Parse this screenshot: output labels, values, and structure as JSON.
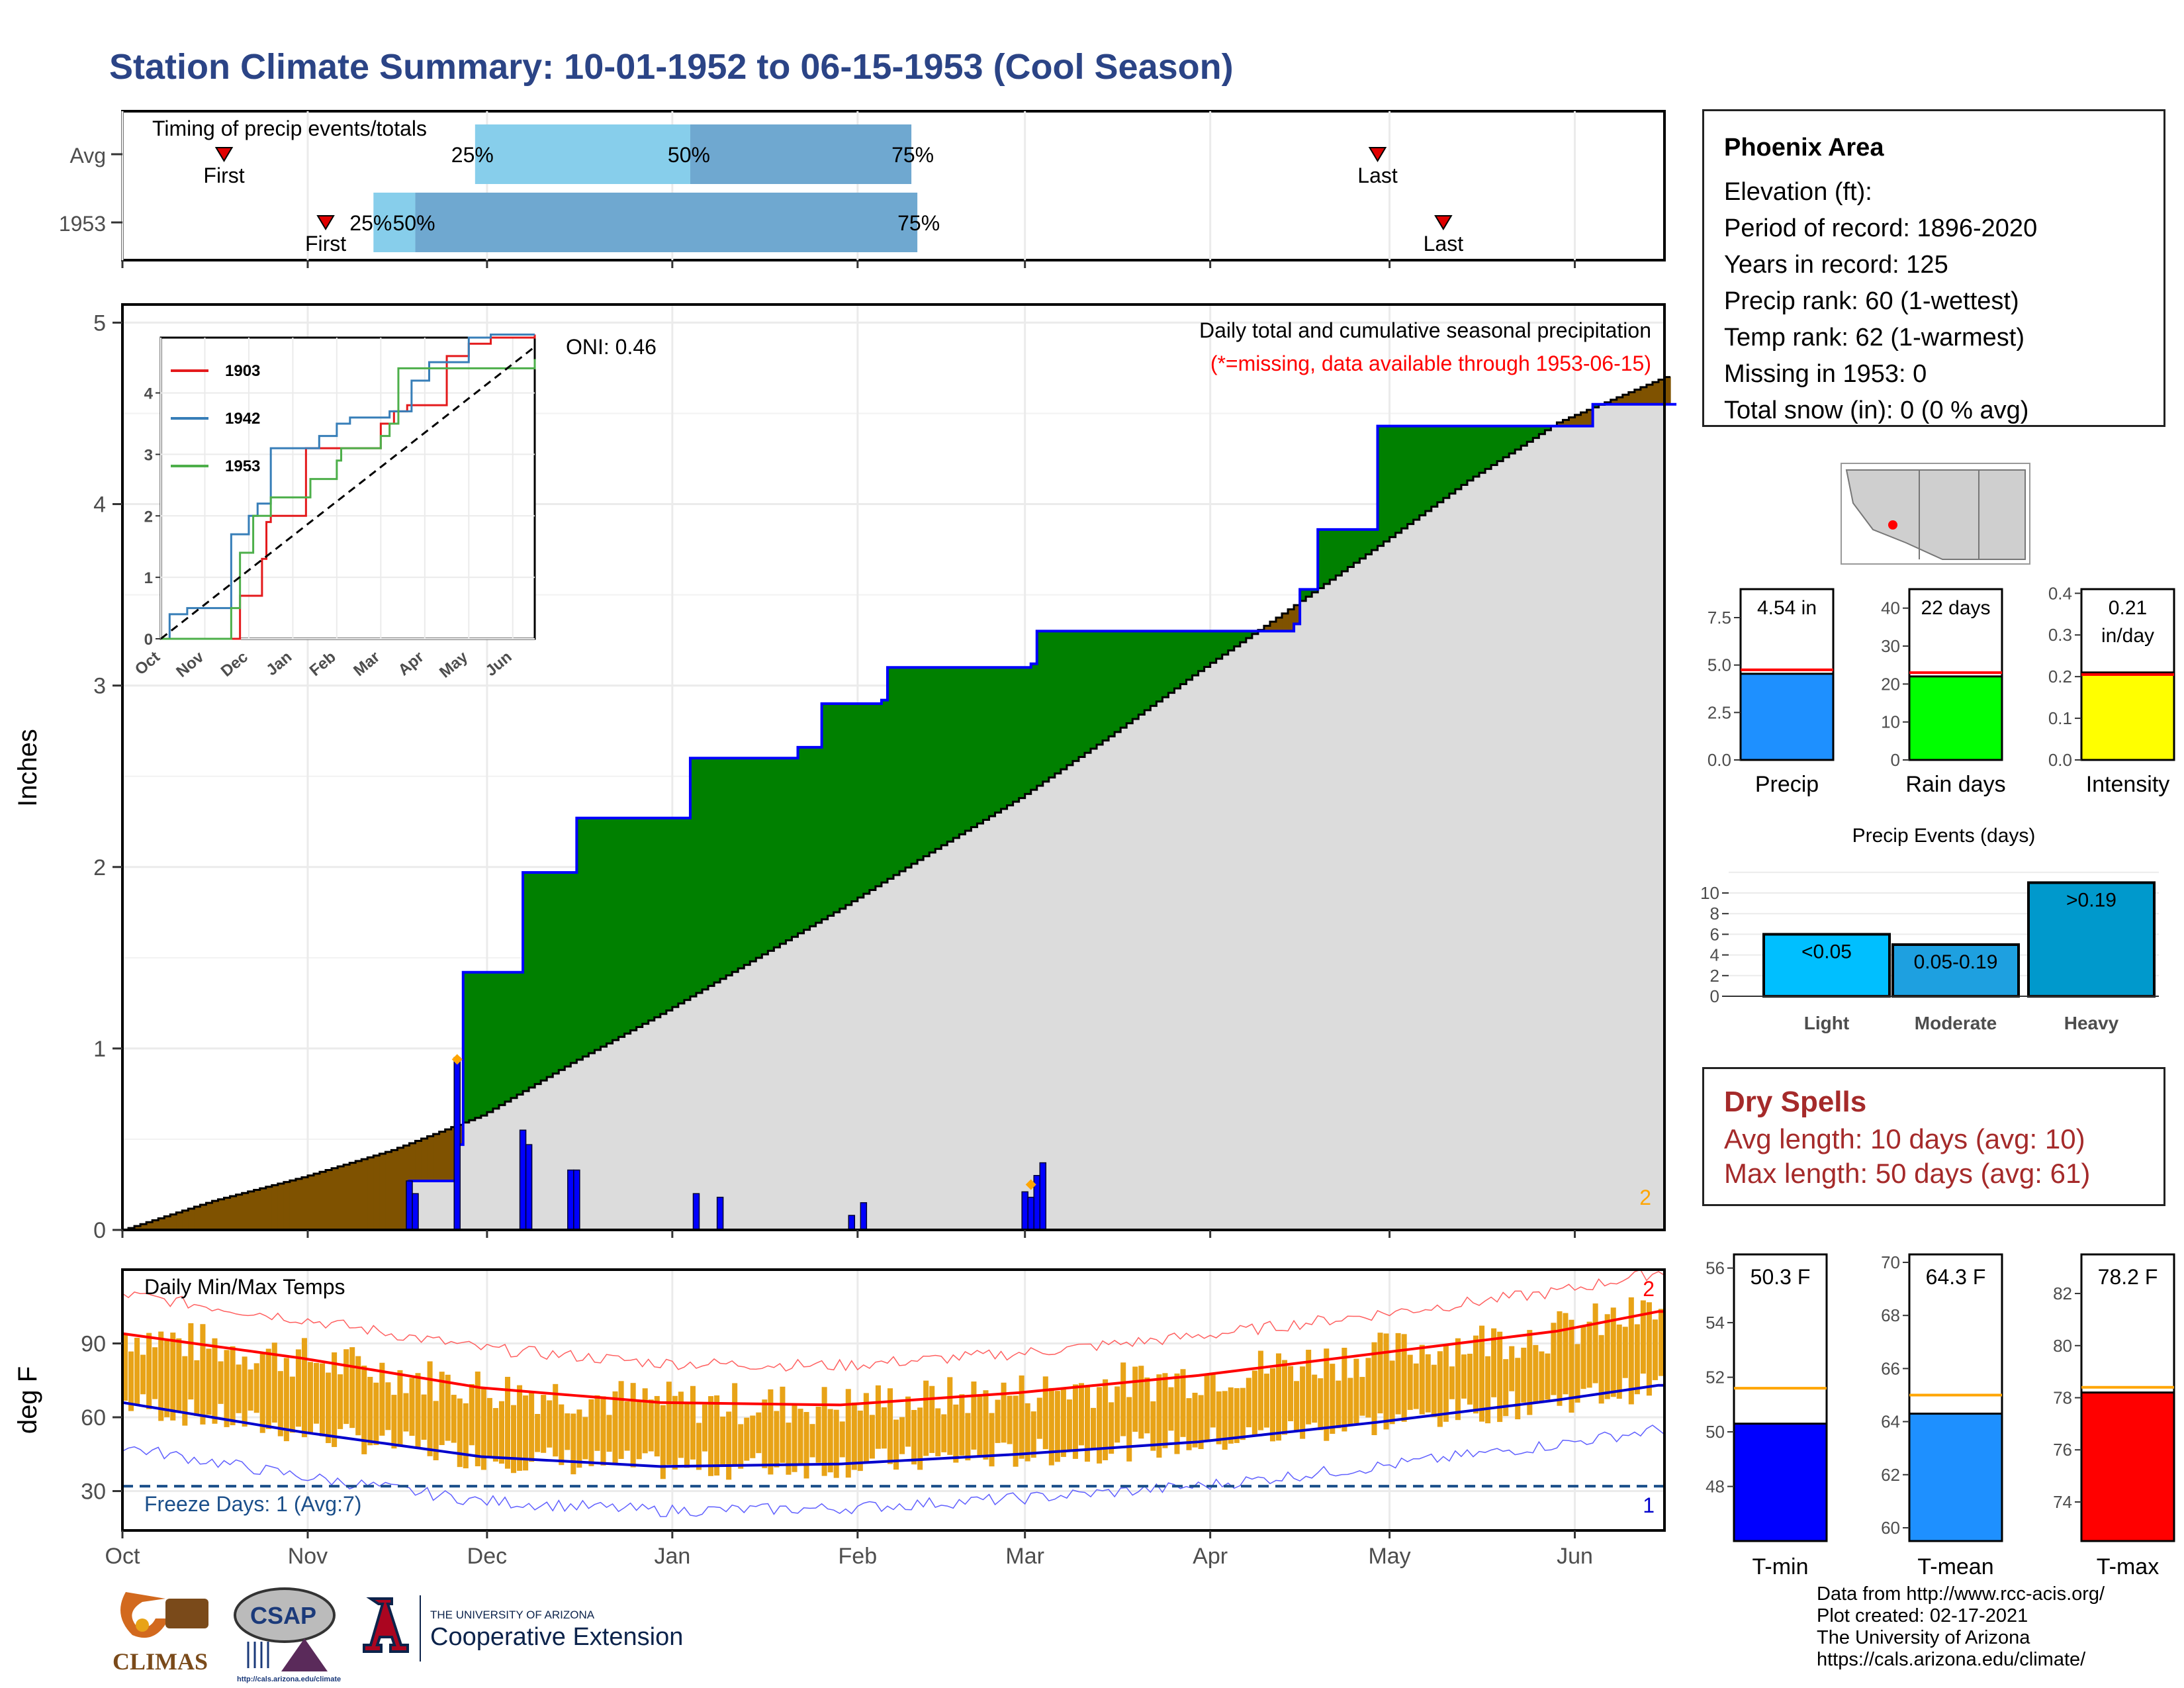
{
  "title": "Station Climate Summary: 10-01-1952 to 06-15-1953 (Cool Season)",
  "colors": {
    "title": "#2b4486",
    "wet": "#008000",
    "dry": "#7f5200",
    "normal_fill": "#dcdcdc",
    "daily_bar": "#0000ff",
    "temp_bar": "#e8a317",
    "tmax_line": "#ff0000",
    "tmin_line": "#0000cc",
    "dry_spell": "#a52a2a"
  },
  "timing_panel": {
    "label": "Timing of precip events/totals",
    "rows": [
      {
        "name": "Avg",
        "first_label": "First",
        "last_label": "Last",
        "q25": "25%",
        "q50": "50%",
        "q75": "75%"
      },
      {
        "name": "1953",
        "first_label": "First",
        "last_label": "Last",
        "q25": "25%",
        "q50": "50%",
        "q75": "75%"
      }
    ]
  },
  "precip_panel": {
    "ylabel": "Inches",
    "label": "Daily total and cumulative seasonal precipitation",
    "missing_note": "(*=missing, data available through 1953-06-15)",
    "oni": "ONI: 0.46",
    "missing_count": "2",
    "y_ticks": [
      "0",
      "1",
      "2",
      "3",
      "4",
      "5"
    ]
  },
  "inset": {
    "y_ticks": [
      "0",
      "1",
      "2",
      "3",
      "4"
    ],
    "x_ticks": [
      "Oct",
      "Nov",
      "Dec",
      "Jan",
      "Feb",
      "Mar",
      "Apr",
      "May",
      "Jun"
    ],
    "legend": [
      "1903",
      "1942",
      "1953"
    ]
  },
  "temp_panel": {
    "ylabel": "deg F",
    "label": "Daily Min/Max Temps",
    "freeze": "Freeze Days: 1 (Avg:7)",
    "max_missing": "2",
    "min_missing": "1",
    "y_ticks": [
      "30",
      "60",
      "90"
    ],
    "x_ticks": [
      "Oct",
      "Nov",
      "Dec",
      "Jan",
      "Feb",
      "Mar",
      "Apr",
      "May",
      "Jun"
    ]
  },
  "station": {
    "area": "Phoenix Area",
    "elevation": "Elevation (ft):",
    "period": "Period of record: 1896-2020",
    "years": "Years in record: 125",
    "precip_rank": "Precip rank: 60 (1-wettest)",
    "temp_rank": "Temp rank: 62 (1-warmest)",
    "missing": "Missing in 1953: 0",
    "snow": "Total snow (in): 0 (0 % avg)"
  },
  "summary_bars": [
    {
      "label": "Precip",
      "value_text": "4.54 in",
      "value_line2": "",
      "value": 4.54,
      "avg": 4.75,
      "ymax": 9.0,
      "ticks": [
        "0.0",
        "2.5",
        "5.0",
        "7.5"
      ],
      "tick_vals": [
        0,
        2.5,
        5.0,
        7.5
      ],
      "color": "#1e90ff"
    },
    {
      "label": "Rain days",
      "value_text": "22 days",
      "value_line2": "",
      "value": 22,
      "avg": 23,
      "ymax": 45,
      "ticks": [
        "0",
        "10",
        "20",
        "30",
        "40"
      ],
      "tick_vals": [
        0,
        10,
        20,
        30,
        40
      ],
      "color": "#00ff00"
    },
    {
      "label": "Intensity",
      "value_text": "0.21",
      "value_line2": "in/day",
      "value": 0.21,
      "avg": 0.205,
      "ymax": 0.41,
      "ticks": [
        "0.0",
        "0.1",
        "0.2",
        "0.3",
        "0.4"
      ],
      "tick_vals": [
        0,
        0.1,
        0.2,
        0.3,
        0.4
      ],
      "color": "#ffff00"
    }
  ],
  "events": {
    "title": "Precip Events (days)",
    "ticks": [
      "0",
      "2",
      "4",
      "6",
      "8",
      "10"
    ],
    "bars": [
      {
        "label": "Light",
        "value_text": "<0.05",
        "value": 6,
        "color": "#00bfff"
      },
      {
        "label": "Moderate",
        "value_text": "0.05-0.19",
        "value": 5,
        "color": "#1ea0e0"
      },
      {
        "label": "Heavy",
        "value_text": ">0.19",
        "value": 11,
        "color": "#0099cc"
      }
    ]
  },
  "dry_spells": {
    "title": "Dry Spells",
    "avg": "Avg length: 10 days (avg: 10)",
    "max": "Max length: 50 days (avg: 61)"
  },
  "temp_bars": [
    {
      "label": "T-min",
      "value_text": "50.3 F",
      "value": 50.3,
      "avg": 51.6,
      "ymin": 46,
      "ymax": 56.5,
      "ticks": [
        "48",
        "50",
        "52",
        "54",
        "56"
      ],
      "tick_vals": [
        48,
        50,
        52,
        54,
        56
      ],
      "color": "#0000ff"
    },
    {
      "label": "T-mean",
      "value_text": "64.3 F",
      "value": 64.3,
      "avg": 65.0,
      "ymin": 59.5,
      "ymax": 70.3,
      "ticks": [
        "60",
        "62",
        "64",
        "66",
        "68",
        "70"
      ],
      "tick_vals": [
        60,
        62,
        64,
        66,
        68,
        70
      ],
      "color": "#1e90ff"
    },
    {
      "label": "T-max",
      "value_text": "78.2 F",
      "value": 78.2,
      "avg": 78.4,
      "ymin": 72.5,
      "ymax": 83.5,
      "ticks": [
        "74",
        "76",
        "78",
        "80",
        "82"
      ],
      "tick_vals": [
        74,
        76,
        78,
        80,
        82
      ],
      "color": "#ff0000"
    }
  ],
  "credits": {
    "line1": "Data from http://www.rcc-acis.org/",
    "line2": "Plot created: 02-17-2021",
    "line3": "The University of Arizona",
    "line4": "https://cals.arizona.edu/climate/"
  },
  "logos": {
    "climas": "CLIMAS",
    "csap": "CSAP",
    "csap_url": "http://cals.arizona.edu/climate",
    "ua_title": "THE UNIVERSITY OF ARIZONA",
    "ua_name": "Cooperative Extension"
  },
  "chart_data": [
    {
      "type": "area",
      "name": "cumulative precipitation",
      "x_unit": "day of season (0 = Oct 1)",
      "x_ticks": [
        "Oct",
        "Nov",
        "Dec",
        "Jan",
        "Feb",
        "Mar",
        "Apr",
        "May",
        "Jun"
      ],
      "ylim": [
        0,
        5.1
      ],
      "observed_1953": {
        "x": [
          0,
          74,
          88,
          88,
          104,
          104,
          112,
          112,
          130,
          130,
          149,
          149,
          152,
          152,
          158,
          158,
          189,
          189,
          192,
          192,
          265,
          265,
          267,
          267,
          272,
          272,
          275,
          275,
          350,
          350,
          372,
          372,
          396,
          396,
          430,
          430,
          470,
          470,
          500,
          520,
          540,
          560,
          580,
          600,
          620,
          640,
          660,
          680,
          700,
          720,
          730,
          760,
          780,
          810,
          840,
          873,
          873,
          980,
          1000,
          1020,
          1040,
          1060,
          1080,
          1100
        ],
        "y": [
          0,
          0,
          0,
          0,
          0,
          0,
          0,
          0,
          0,
          0,
          0,
          0,
          0,
          0,
          0,
          0,
          0,
          0,
          0,
          0,
          0,
          0,
          0,
          0,
          0,
          0,
          0,
          0,
          0,
          0,
          0,
          0,
          0,
          0,
          0,
          0,
          0,
          0,
          0,
          0,
          0,
          0,
          0,
          0,
          0,
          0,
          0,
          0,
          0,
          0,
          0,
          0,
          0,
          0,
          0,
          0,
          0,
          0,
          0,
          0,
          0,
          0,
          0,
          0
        ]
      },
      "observed_steps": {
        "day": [
          0,
          46,
          48,
          56,
          56,
          66,
          67,
          75,
          76,
          94,
          95,
          100,
          101,
          122,
          124,
          125,
          148,
          151,
          170,
          203,
          205,
          207,
          208,
          210,
          226,
          227,
          238,
          239,
          258
        ],
        "value": [
          0,
          0,
          0.47,
          0.47,
          1.42,
          1.42,
          1.97,
          1.97,
          2.27,
          2.27,
          2.6,
          2.6,
          2.66,
          2.66,
          2.9,
          2.92,
          3.1,
          3.1,
          3.1,
          3.12,
          3.3,
          3.33,
          3.33,
          3.33,
          3.53,
          3.53,
          3.86,
          4.43,
          4.43
        ]
      },
      "cumulative_1953": {
        "x": [
          0,
          47,
          48,
          56,
          57,
          66,
          67,
          75,
          76,
          94,
          95,
          112,
          113,
          116,
          117,
          127,
          128,
          148,
          151,
          152,
          153,
          191,
          192,
          195,
          196,
          196,
          197,
          199,
          200,
          210,
          211,
          245,
          246,
          260
        ],
        "y": [
          0,
          0,
          0.27,
          0.47,
          1.42,
          1.42,
          1.97,
          1.97,
          2.27,
          2.27,
          2.6,
          2.6,
          2.66,
          2.66,
          2.9,
          2.92,
          3.1,
          3.1,
          3.1,
          3.12,
          3.3,
          3.3,
          3.3,
          3.3,
          3.34,
          3.34,
          3.53,
          3.53,
          3.86,
          4.43,
          4.43,
          4.43,
          4.55,
          4.55
        ]
      },
      "normal_cumulative": {
        "x": [
          0,
          15,
          30,
          45,
          60,
          75,
          90,
          105,
          120,
          135,
          150,
          165,
          180,
          195,
          210,
          225,
          240,
          258
        ],
        "y": [
          0.0,
          0.16,
          0.29,
          0.44,
          0.63,
          0.92,
          1.19,
          1.48,
          1.77,
          2.08,
          2.38,
          2.72,
          3.08,
          3.42,
          3.77,
          4.13,
          4.45,
          4.7
        ]
      },
      "daily_precip": {
        "x": [
          48,
          49,
          56,
          67,
          68,
          75,
          76,
          96,
          100,
          122,
          124,
          151,
          152,
          153,
          154
        ],
        "y": [
          0.27,
          0.2,
          0.95,
          0.55,
          0.47,
          0.33,
          0.33,
          0.2,
          0.18,
          0.08,
          0.15,
          0.21,
          0.18,
          0.3,
          0.37
        ]
      }
    },
    {
      "type": "line",
      "name": "inset cumulative by year",
      "ylim": [
        0,
        4.9
      ],
      "x_ticks": [
        "Oct",
        "Nov",
        "Dec",
        "Jan",
        "Feb",
        "Mar",
        "Apr",
        "May",
        "Jun"
      ],
      "series": [
        {
          "name": "1903",
          "x": [
            0,
            1.6,
            1.8,
            2.3,
            2.4,
            2.5,
            3.3,
            3.6,
            4.0,
            4.8,
            5.0,
            5.3,
            5.6,
            5.9,
            6.5,
            7.0,
            7.5,
            8.5
          ],
          "y": [
            0,
            0,
            0.7,
            1.3,
            1.9,
            2.0,
            3.1,
            3.1,
            3.1,
            3.1,
            3.5,
            3.7,
            3.8,
            3.8,
            4.6,
            4.8,
            4.9,
            4.95
          ]
        },
        {
          "name": "1942",
          "x": [
            0,
            0.2,
            0.6,
            1.4,
            1.6,
            2.0,
            2.2,
            2.5,
            3.2,
            3.6,
            4.0,
            4.3,
            4.8,
            5.2,
            5.7,
            6.1,
            7.0,
            7.5,
            8.5
          ],
          "y": [
            0,
            0.4,
            0.5,
            0.5,
            1.7,
            2.0,
            2.2,
            3.1,
            3.1,
            3.3,
            3.5,
            3.6,
            3.6,
            3.7,
            4.2,
            4.5,
            4.9,
            4.95,
            4.95
          ]
        },
        {
          "name": "1953",
          "x": [
            0,
            1.5,
            1.6,
            1.8,
            2.1,
            2.5,
            3.4,
            4.0,
            4.1,
            5.0,
            5.2,
            5.4,
            8.5
          ],
          "y": [
            0,
            0,
            0.5,
            1.4,
            2.0,
            2.3,
            2.6,
            2.9,
            3.1,
            3.3,
            3.5,
            4.4,
            4.55
          ]
        },
        {
          "name": "average",
          "x": [
            0,
            8.5
          ],
          "y": [
            0,
            4.75
          ]
        }
      ]
    },
    {
      "type": "bar",
      "name": "daily min/max temps",
      "ylim": [
        14,
        120
      ],
      "x_ticks": [
        "Oct",
        "Nov",
        "Dec",
        "Jan",
        "Feb",
        "Mar",
        "Apr",
        "May",
        "Jun"
      ],
      "normal_max": {
        "x": [
          0,
          30,
          60,
          90,
          120,
          150,
          180,
          210,
          240,
          257
        ],
        "y": [
          94,
          84,
          72,
          66,
          65,
          70,
          77,
          86,
          95,
          103
        ]
      },
      "normal_min": {
        "x": [
          0,
          30,
          60,
          90,
          120,
          150,
          180,
          210,
          240,
          257
        ],
        "y": [
          66,
          54,
          44,
          40,
          41,
          45,
          50,
          58,
          67,
          73
        ]
      },
      "freeze_line": 32
    }
  ]
}
